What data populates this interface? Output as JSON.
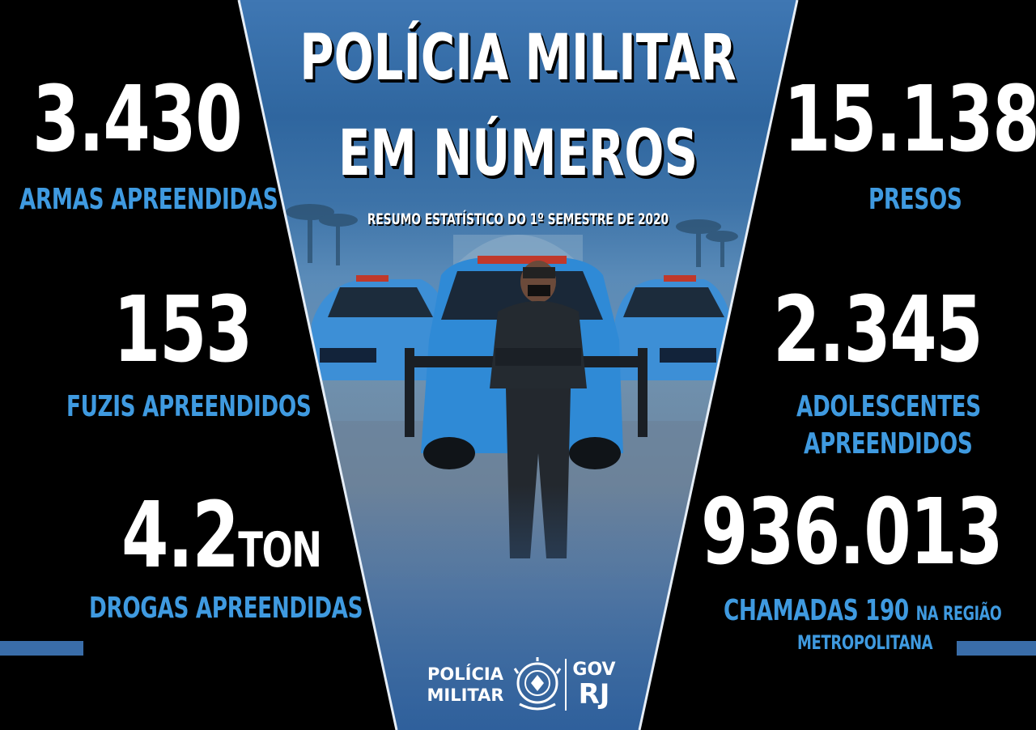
{
  "title": {
    "line1": "POLÍCIA MILITAR",
    "line2": "EM NÚMEROS",
    "subtitle": "RESUMO ESTATÍSTICO DO 1º SEMESTRE DE 2020"
  },
  "stats_left": [
    {
      "number": "3.430",
      "label": "ARMAS APREENDIDAS"
    },
    {
      "number": "153",
      "label": "FUZIS APREENDIDOS"
    },
    {
      "number": "4.2",
      "unit": "TON",
      "label": "DROGAS APREENDIDAS"
    }
  ],
  "stats_right": [
    {
      "number": "15.138",
      "label": "PRESOS"
    },
    {
      "number": "2.345",
      "label_line1": "ADOLESCENTES",
      "label_line2": "APREENDIDOS"
    },
    {
      "number": "936.013",
      "label_main": "CHAMADAS 190",
      "label_suffix": "NA REGIÃO",
      "label_line2": "METROPOLITANA"
    }
  ],
  "footer": {
    "org_line1": "POLÍCIA",
    "org_line2": "MILITAR",
    "gov_line1": "GOV",
    "gov_line2": "RJ"
  },
  "colors": {
    "background": "#000000",
    "accent_blue": "#3f9ae0",
    "panel_blue": "#3f77b3",
    "text_white": "#ffffff"
  },
  "icons": [
    "pmerj-crest-icon"
  ]
}
